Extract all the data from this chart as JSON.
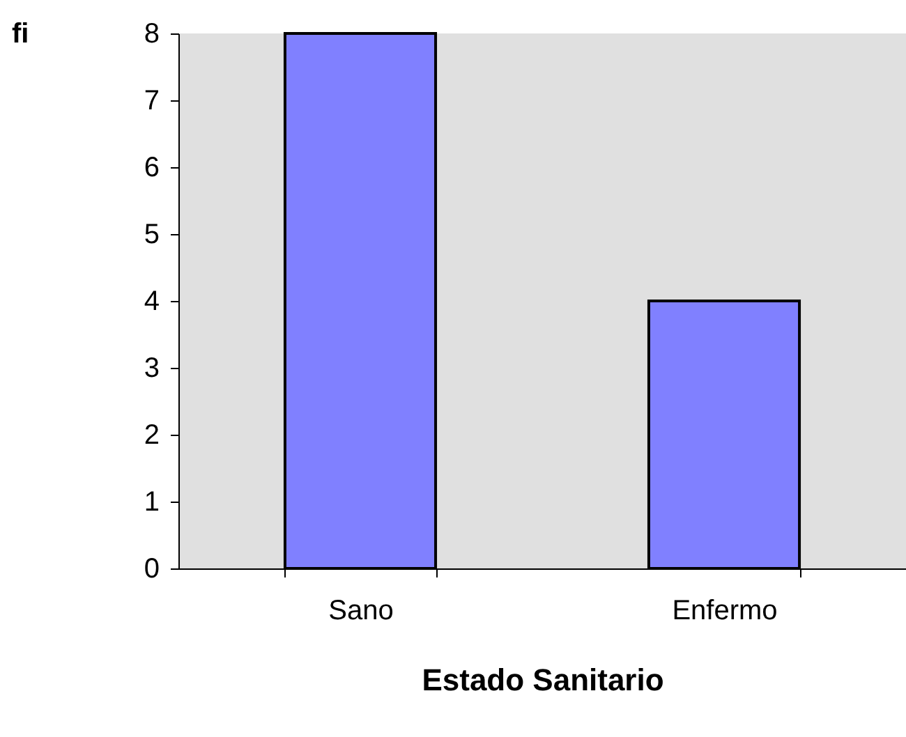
{
  "chart_data": {
    "type": "bar",
    "xlabel": "Estado Sanitario",
    "ylabel": "fi",
    "categories": [
      "Sano",
      "Enfermo"
    ],
    "values": [
      8,
      4
    ],
    "color": "#8080ff",
    "ylim": [
      0,
      8
    ],
    "yticks": [
      0,
      1,
      2,
      3,
      4,
      5,
      6,
      7,
      8
    ]
  }
}
